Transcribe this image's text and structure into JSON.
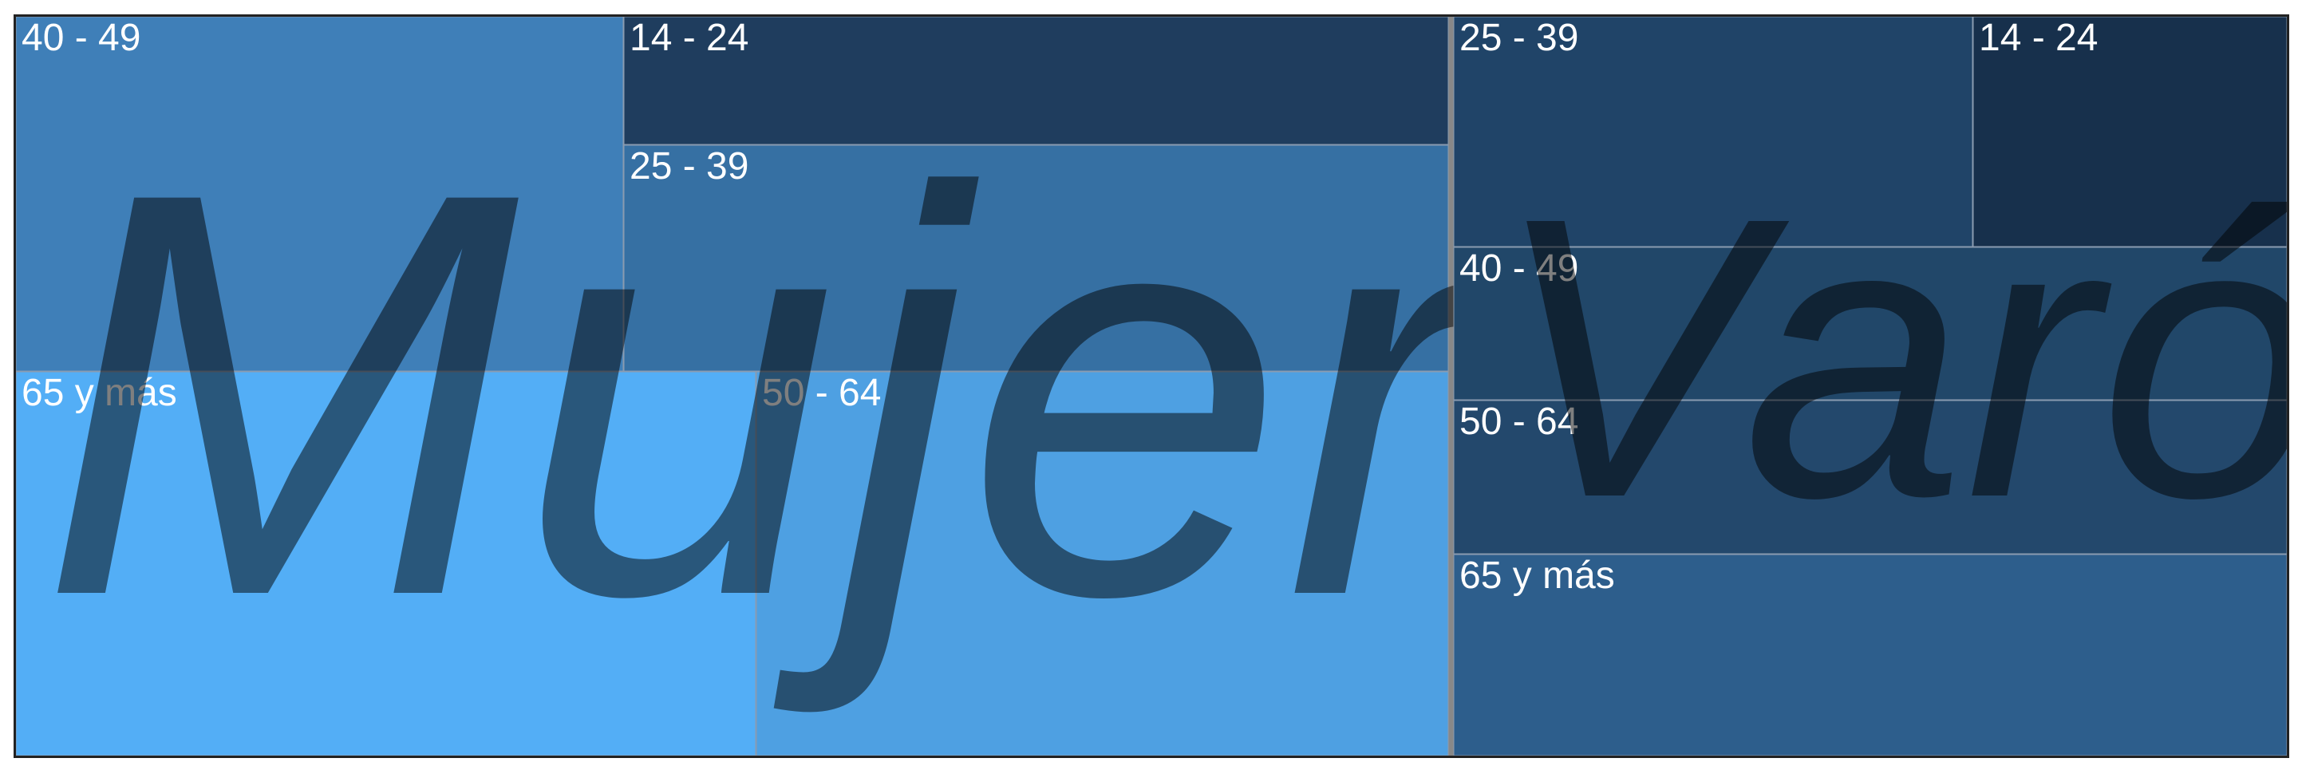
{
  "chart_data": {
    "type": "treemap",
    "groups": [
      {
        "name": "Mujer",
        "segments": [
          {
            "label": "40 - 49",
            "color": "#3F7FB8"
          },
          {
            "label": "14 - 24",
            "color": "#1F3D5E"
          },
          {
            "label": "25 - 39",
            "color": "#3670A3"
          },
          {
            "label": "65 y más",
            "color": "#53AEF6"
          },
          {
            "label": "50 - 64",
            "color": "#4EA0E2"
          }
        ]
      },
      {
        "name": "Varón",
        "segments": [
          {
            "label": "25 - 39",
            "color": "#204468"
          },
          {
            "label": "14 - 24",
            "color": "#17304C"
          },
          {
            "label": "40 - 49",
            "color": "#214769"
          },
          {
            "label": "50 - 64",
            "color": "#23486C"
          },
          {
            "label": "65 y más",
            "color": "#2D5E8C"
          }
        ]
      }
    ]
  }
}
